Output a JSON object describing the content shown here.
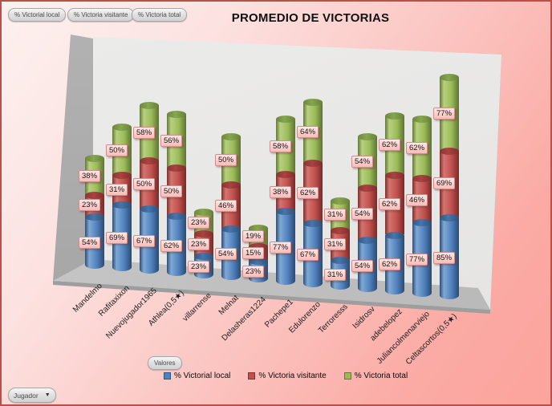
{
  "filter_buttons": [
    {
      "label": "% Victorial local"
    },
    {
      "label": "% Victoria visitante"
    },
    {
      "label": "% Victoria total"
    }
  ],
  "buttons": {
    "values_field": "Valores",
    "axis_field": "Jugador",
    "axis_field_arrow": "▼"
  },
  "colors": {
    "series_local": "#4F81BD",
    "series_visitante": "#C0504D",
    "series_total": "#9BBB59",
    "background_top": "#FDF1F0",
    "background_bottom": "#FCA39D",
    "frame_border": "#B8504C",
    "label_box": "#FBCDCA"
  },
  "chart_data": {
    "type": "bar",
    "subtype": "3d-stacked-cylinder",
    "title": "PROMEDIO DE VICTORIAS",
    "xlabel": "",
    "ylabel": "",
    "axis_field_name": "Jugador",
    "values_field_name": "Valores",
    "grid": false,
    "legend_position": "bottom",
    "data_labels": "shown as % in pink boxes on each segment",
    "categories": [
      "Mandelmo",
      "Rafitaxixon",
      "Nuevojugador1965",
      "Athlea(0,5★)",
      "villarrense",
      "Melnat",
      "Delasheras1224",
      "Pachepe1",
      "Edulorenzo",
      "Terroresss",
      "Isidrosv",
      "adebelopez",
      "Juliancolmenarviejo",
      "Celtascortos(0,5★)"
    ],
    "series": [
      {
        "name": "% Victorial local",
        "color": "#4F81BD",
        "values": [
          54,
          69,
          67,
          62,
          23,
          54,
          23,
          77,
          67,
          31,
          54,
          62,
          77,
          85
        ]
      },
      {
        "name": "% Victoria visitante",
        "color": "#C0504D",
        "values": [
          23,
          31,
          50,
          50,
          23,
          46,
          15,
          38,
          62,
          31,
          54,
          62,
          46,
          69
        ]
      },
      {
        "name": "% Victoria total",
        "color": "#9BBB59",
        "values": [
          38,
          50,
          58,
          56,
          23,
          50,
          19,
          58,
          64,
          31,
          54,
          62,
          62,
          77
        ]
      }
    ],
    "unit": "%"
  }
}
